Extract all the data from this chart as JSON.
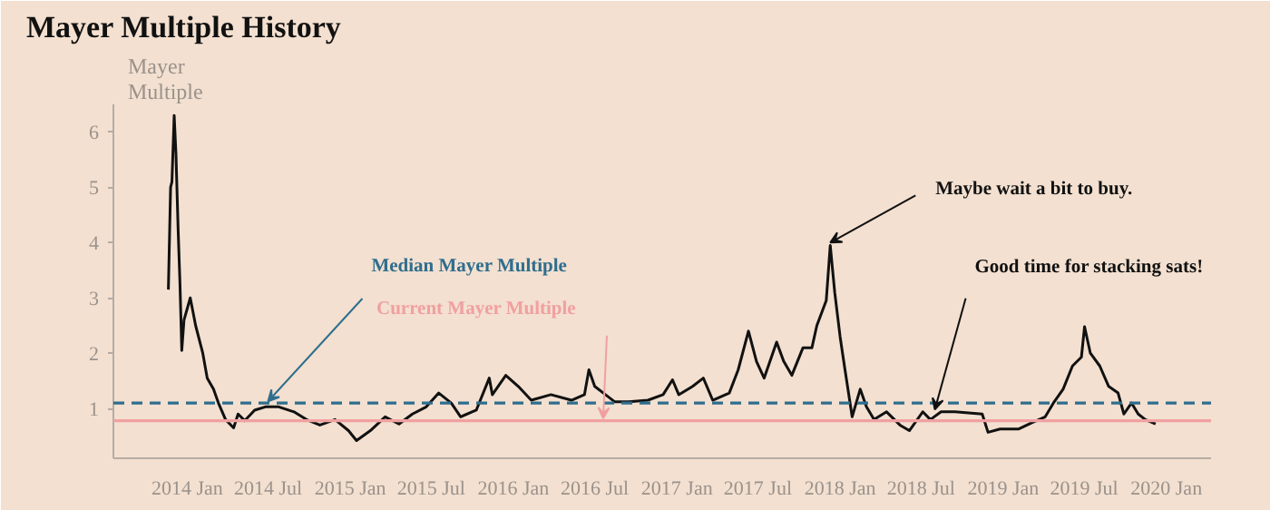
{
  "chart_data": {
    "type": "line",
    "title": "Mayer Multiple History",
    "ylabel": "Mayer Multiple",
    "x": [
      "2013-11-20",
      "2013-11-25",
      "2013-11-28",
      "2013-12-03",
      "2013-12-07",
      "2013-12-12",
      "2013-12-16",
      "2013-12-20",
      "2013-12-25",
      "2014-01-01",
      "2014-01-08",
      "2014-01-20",
      "2014-02-05",
      "2014-02-15",
      "2014-03-01",
      "2014-03-12",
      "2014-03-28",
      "2014-04-15",
      "2014-04-25",
      "2014-05-10",
      "2014-06-01",
      "2014-06-25",
      "2014-07-25",
      "2014-08-28",
      "2014-09-25",
      "2014-10-25",
      "2014-11-28",
      "2014-12-28",
      "2015-01-15",
      "2015-02-15",
      "2015-03-20",
      "2015-04-20",
      "2015-05-20",
      "2015-06-20",
      "2015-07-18",
      "2015-08-15",
      "2015-09-05",
      "2015-10-10",
      "2015-11-08",
      "2015-11-15",
      "2015-12-15",
      "2016-01-12",
      "2016-02-10",
      "2016-03-25",
      "2016-05-10",
      "2016-06-08",
      "2016-06-18",
      "2016-07-01",
      "2016-07-25",
      "2016-08-15",
      "2016-09-15",
      "2016-10-28",
      "2016-12-01",
      "2016-12-22",
      "2017-01-05",
      "2017-02-05",
      "2017-03-01",
      "2017-03-22",
      "2017-04-28",
      "2017-05-18",
      "2017-06-10",
      "2017-06-28",
      "2017-07-15",
      "2017-08-12",
      "2017-08-28",
      "2017-09-15",
      "2017-10-10",
      "2017-10-30",
      "2017-11-10",
      "2017-12-01",
      "2017-12-10",
      "2017-12-20",
      "2018-01-01",
      "2018-01-12",
      "2018-01-28",
      "2018-02-15",
      "2018-03-01",
      "2018-03-18",
      "2018-04-15",
      "2018-05-15",
      "2018-06-05",
      "2018-07-05",
      "2018-07-22",
      "2018-08-15",
      "2018-09-15",
      "2018-11-15",
      "2018-11-28",
      "2018-12-25",
      "2019-02-05",
      "2019-03-08",
      "2019-04-05",
      "2019-04-25",
      "2019-05-15",
      "2019-06-05",
      "2019-06-25",
      "2019-07-02",
      "2019-07-15",
      "2019-08-05",
      "2019-08-25",
      "2019-09-15",
      "2019-09-28",
      "2019-10-15",
      "2019-10-30",
      "2019-11-15",
      "2019-12-08"
    ],
    "series": [
      {
        "color": "#111111",
        "values": [
          3.15,
          5.0,
          5.1,
          6.3,
          5.6,
          4.2,
          3.25,
          2.05,
          2.6,
          2.8,
          3.0,
          2.5,
          2.0,
          1.55,
          1.35,
          1.1,
          0.8,
          0.65,
          0.9,
          0.78,
          0.97,
          1.03,
          1.03,
          0.94,
          0.8,
          0.7,
          0.8,
          0.6,
          0.42,
          0.6,
          0.85,
          0.72,
          0.9,
          1.03,
          1.28,
          1.1,
          0.85,
          0.97,
          1.55,
          1.25,
          1.6,
          1.4,
          1.15,
          1.25,
          1.15,
          1.25,
          1.7,
          1.4,
          1.25,
          1.12,
          1.12,
          1.15,
          1.25,
          1.52,
          1.25,
          1.4,
          1.55,
          1.15,
          1.28,
          1.7,
          2.4,
          1.85,
          1.55,
          2.2,
          1.85,
          1.6,
          2.1,
          2.1,
          2.5,
          2.95,
          3.95,
          3.1,
          2.3,
          1.7,
          0.85,
          1.35,
          1.03,
          0.8,
          0.94,
          0.7,
          0.6,
          0.94,
          0.8,
          0.94,
          0.94,
          0.9,
          0.57,
          0.63,
          0.63,
          0.75,
          0.85,
          1.12,
          1.35,
          1.77,
          1.93,
          2.48,
          2.0,
          1.77,
          1.4,
          1.28,
          0.9,
          1.1,
          0.9,
          0.8,
          0.72
        ]
      }
    ],
    "xlim": [
      "2013-07-20",
      "2020-04-10"
    ],
    "xticks": [
      {
        "value": "2014-01",
        "label": "2014 Jan"
      },
      {
        "value": "2014-07",
        "label": "2014 Jul"
      },
      {
        "value": "2015-01",
        "label": "2015 Jan"
      },
      {
        "value": "2015-07",
        "label": "2015 Jul"
      },
      {
        "value": "2016-01",
        "label": "2016 Jan"
      },
      {
        "value": "2016-07",
        "label": "2016 Jul"
      },
      {
        "value": "2017-01",
        "label": "2017 Jan"
      },
      {
        "value": "2017-07",
        "label": "2017 Jul"
      },
      {
        "value": "2018-01",
        "label": "2018 Jan"
      },
      {
        "value": "2018-07",
        "label": "2018 Jul"
      },
      {
        "value": "2019-01",
        "label": "2019 Jan"
      },
      {
        "value": "2019-07",
        "label": "2019 Jul"
      },
      {
        "value": "2020-01",
        "label": "2020 Jan"
      }
    ],
    "ylim": [
      0.1,
      6.5
    ],
    "yticks": [
      1,
      2,
      3,
      4,
      5,
      6
    ],
    "ref_lines": [
      {
        "axis": "y",
        "value": 1.1,
        "label": "Median Mayer Multiple",
        "color": "#2f6e8e",
        "line_style": "dashed"
      },
      {
        "axis": "y",
        "value": 0.78,
        "label": "Current Mayer Multiple",
        "color": "#f0a0a0",
        "line_style": "solid"
      }
    ],
    "annotations": [
      {
        "text": "Maybe wait a bit to buy.",
        "x": "2017-12-10",
        "y": 4.0
      },
      {
        "text": "Good time for stacking sats!",
        "x": "2018-08-01",
        "y": 0.98
      }
    ],
    "grid": false,
    "marker": "none",
    "line_style": "solid"
  }
}
